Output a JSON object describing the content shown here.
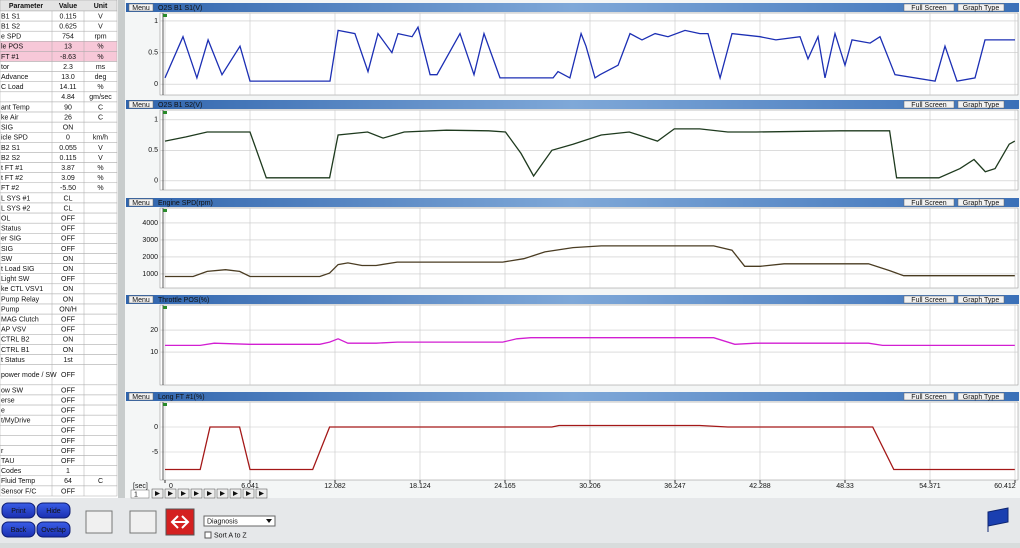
{
  "table": {
    "header": [
      "Parameter",
      "Value",
      "Unit"
    ],
    "highlight": [
      3,
      4
    ],
    "rows": [
      [
        "B1 S1",
        "0.115",
        "V"
      ],
      [
        "B1 S2",
        "0.625",
        "V"
      ],
      [
        "e SPD",
        "754",
        "rpm"
      ],
      [
        "le POS",
        "13",
        "%"
      ],
      [
        "FT #1",
        "-8.63",
        "%"
      ],
      [
        "tor",
        "2.3",
        "ms"
      ],
      [
        "Advance",
        "13.0",
        "deg"
      ],
      [
        "C Load",
        "14.11",
        "%"
      ],
      [
        "",
        "4.84",
        "gm/sec"
      ],
      [
        "ant Temp",
        "90",
        "C"
      ],
      [
        "ke Air",
        "26",
        "C"
      ],
      [
        "SIG",
        "ON"
      ],
      [
        "icle SPD",
        "0",
        "km/h"
      ],
      [
        "B2 S1",
        "0.055",
        "V"
      ],
      [
        "B2 S2",
        "0.115",
        "V"
      ],
      [
        "t FT #1",
        "3.87",
        "%"
      ],
      [
        "t FT #2",
        "3.09",
        "%"
      ],
      [
        "FT #2",
        "-5.50",
        "%"
      ],
      [
        "L SYS #1",
        "CL"
      ],
      [
        "L SYS #2",
        "CL"
      ],
      [
        "OL",
        "OFF"
      ],
      [
        "Status",
        "OFF"
      ],
      [
        "er SIG",
        "OFF"
      ],
      [
        "SIG",
        "OFF"
      ],
      [
        "SW",
        "ON"
      ],
      [
        "t Load SIG",
        "ON"
      ],
      [
        "Light SW",
        "OFF"
      ],
      [
        "ke CTL VSV1",
        "ON"
      ],
      [
        "Pump Relay",
        "ON"
      ],
      [
        "Pump",
        "ON/H"
      ],
      [
        "MAG Clutch",
        "OFF"
      ],
      [
        "AP VSV",
        "OFF"
      ],
      [
        "CTRL B2",
        "ON"
      ],
      [
        "CTRL B1",
        "ON"
      ],
      [
        "t Status",
        "1st"
      ],
      [
        "power mode / SW",
        "OFF"
      ],
      [
        "ow SW",
        "OFF"
      ],
      [
        "erse",
        "OFF"
      ],
      [
        "e",
        "OFF"
      ],
      [
        "t/MyDrive",
        "OFF"
      ],
      [
        "",
        "OFF"
      ],
      [
        "",
        "OFF"
      ],
      [
        "r",
        "OFF"
      ],
      [
        "TAU",
        "OFF"
      ],
      [
        "Codes",
        "1"
      ],
      [
        "Fluid Temp",
        "64",
        "C"
      ],
      [
        "Sensor F/C",
        "OFF"
      ]
    ]
  },
  "graph_buttons": {
    "menu": "Menu",
    "full_screen": "Full Screen",
    "graph_type": "Graph Type"
  },
  "graphs": [
    {
      "title": "O2S B1 S1(V)",
      "color": "#1c2fb4",
      "ylim": [
        -0.17,
        1.125
      ],
      "yticks": [
        0,
        0.5,
        1
      ],
      "x": [
        0,
        1.28,
        2.27,
        3.06,
        4.05,
        5.33,
        6.04,
        11.73,
        12.3,
        13.5,
        14.43,
        15.14,
        16.13,
        16.56,
        17.56,
        17.98,
        18.84,
        19.33,
        20.97,
        21.96,
        22.67,
        23.81,
        27.58,
        27.93,
        28.78,
        29.57,
        29.92,
        30.56,
        30.92,
        32.2,
        33.05,
        33.9,
        34.83,
        35.75,
        36.96,
        38.02,
        38.59,
        39.45,
        40.3,
        42.29,
        43.42,
        45.13,
        45.7,
        46.41,
        46.91,
        47.62,
        48.33,
        48.83,
        50.11,
        50.82,
        51.88,
        54.73,
        55.44,
        56.29,
        57.57,
        58.28,
        60.41
      ],
      "values": [
        0.1,
        0.75,
        0.1,
        0.7,
        0.15,
        0.6,
        0.05,
        0.05,
        0.85,
        0.8,
        0.2,
        0.8,
        0.5,
        0.8,
        0.75,
        0.9,
        0.15,
        0.15,
        0.8,
        0.15,
        0.8,
        0.1,
        0.1,
        0.2,
        0.1,
        0.8,
        0.6,
        0.1,
        0.15,
        0.3,
        0.8,
        0.7,
        0.8,
        0.75,
        0.85,
        0.8,
        0.8,
        0.1,
        0.8,
        0.75,
        0.7,
        0.75,
        0.4,
        0.75,
        0.1,
        0.8,
        0.3,
        0.7,
        0.65,
        0.75,
        0.15,
        0.05,
        0.6,
        0.05,
        0.1,
        0.7,
        0.7
      ]
    },
    {
      "title": "O2S B1 S2(V)",
      "color": "#1e3a1e",
      "ylim": [
        -0.15,
        1.16
      ],
      "yticks": [
        0,
        0.5,
        1
      ],
      "x": [
        0,
        1.5,
        3,
        5.3,
        6.04,
        7.2,
        11.7,
        12.3,
        14.4,
        15.5,
        17,
        20,
        23,
        24.2,
        25.3,
        26.2,
        27.5,
        29,
        31,
        33,
        35,
        36.2,
        38,
        40,
        42,
        48,
        51.5,
        52,
        55,
        56.5,
        57.5,
        58.3,
        59,
        60,
        60.4
      ],
      "values": [
        0.65,
        0.72,
        0.8,
        0.8,
        0.8,
        0.05,
        0.05,
        0.75,
        0.8,
        0.7,
        0.8,
        0.83,
        0.82,
        0.8,
        0.45,
        0.08,
        0.5,
        0.6,
        0.75,
        0.8,
        0.65,
        0.85,
        0.85,
        0.8,
        0.8,
        0.82,
        0.82,
        0.05,
        0.05,
        0.2,
        0.35,
        0.15,
        0.2,
        0.6,
        0.65
      ]
    },
    {
      "title": "Engine SPD(rpm)",
      "color": "#4a3c22",
      "ylim": [
        176,
        4880
      ],
      "yticks": [
        1000,
        2000,
        3000,
        4000
      ],
      "x": [
        0,
        2,
        3,
        4.3,
        5.3,
        6.04,
        11,
        11.7,
        12.3,
        13,
        14,
        15,
        16.5,
        24,
        25.5,
        27,
        29,
        31,
        39,
        40.3,
        41.2,
        42.3,
        44,
        50,
        51.5,
        52.5,
        54.5,
        60.4
      ],
      "values": [
        850,
        850,
        1150,
        1250,
        1150,
        850,
        850,
        1050,
        1550,
        1650,
        1500,
        1500,
        1700,
        1700,
        1900,
        2300,
        2550,
        2650,
        2650,
        2400,
        1450,
        1450,
        1600,
        1600,
        1200,
        900,
        900,
        900
      ]
    },
    {
      "title": "Throttle POS(%)",
      "color": "#d21ed2",
      "ylim": [
        -5,
        31.4
      ],
      "yticks": [
        10,
        20
      ],
      "x": [
        0,
        2.5,
        3.5,
        6,
        11,
        11.7,
        12.3,
        13,
        15,
        16.5,
        24,
        25,
        26,
        39,
        40.5,
        42,
        50,
        51,
        60.4
      ],
      "values": [
        13,
        13,
        14,
        13.5,
        13.5,
        14.5,
        16,
        14,
        14,
        14.5,
        14.5,
        16,
        16.5,
        16.5,
        13.5,
        14,
        14,
        13,
        13
      ]
    },
    {
      "title": "Long FT #1(%)",
      "color": "#a41818",
      "ylim": [
        -10.6,
        5
      ],
      "yticks": [
        -5,
        0
      ],
      "x": [
        0,
        2.5,
        3.2,
        5.3,
        6.04,
        10.5,
        11.7,
        27.5,
        28,
        38,
        40,
        50.3,
        51.8,
        60.4
      ],
      "values": [
        -8.5,
        -8.5,
        0,
        0,
        -8.5,
        -8.5,
        0,
        0,
        0.3,
        0.3,
        0,
        0,
        -8.5,
        -8.5
      ]
    }
  ],
  "time_axis": {
    "unit": "[sec]",
    "xlim": [
      0,
      60.412
    ],
    "xticks": [
      0,
      6.041,
      12.082,
      18.124,
      24.165,
      30.206,
      36.247,
      42.288,
      48.33,
      54.371,
      60.412
    ]
  },
  "playback": {
    "step": "1"
  },
  "buttons": [
    "Print",
    "Hide",
    "Back",
    "Overlap"
  ],
  "dropdown": "Diagnosis",
  "checkbox": "Sort A to Z"
}
